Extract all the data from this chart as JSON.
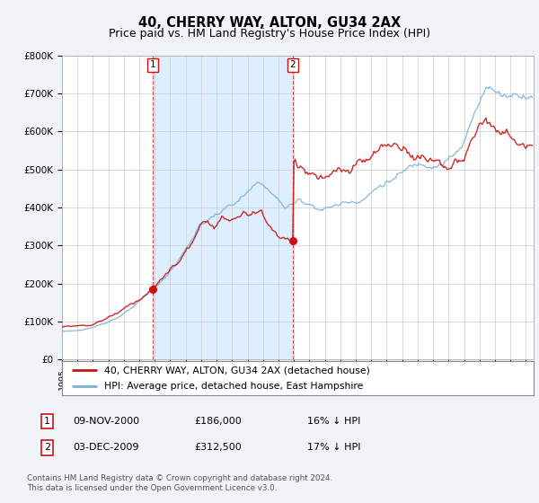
{
  "title": "40, CHERRY WAY, ALTON, GU34 2AX",
  "subtitle": "Price paid vs. HM Land Registry's House Price Index (HPI)",
  "ylim": [
    0,
    800000
  ],
  "yticks": [
    0,
    100000,
    200000,
    300000,
    400000,
    500000,
    600000,
    700000,
    800000
  ],
  "ytick_labels": [
    "£0",
    "£100K",
    "£200K",
    "£300K",
    "£400K",
    "£500K",
    "£600K",
    "£700K",
    "£800K"
  ],
  "price_paid_color": "#cc1111",
  "hpi_color": "#7ab0d4",
  "shade_color": "#ddeeff",
  "vline_color": "#dd3333",
  "background_color": "#f0f4f8",
  "plot_bg_color": "#ffffff",
  "sale1_x": 2000.875,
  "sale2_x": 2009.917,
  "sale1_price": 186000,
  "sale2_price": 312500,
  "legend_label1": "40, CHERRY WAY, ALTON, GU34 2AX (detached house)",
  "legend_label2": "HPI: Average price, detached house, East Hampshire",
  "table_row1": [
    "1",
    "09-NOV-2000",
    "£186,000",
    "16% ↓ HPI"
  ],
  "table_row2": [
    "2",
    "03-DEC-2009",
    "£312,500",
    "17% ↓ HPI"
  ],
  "footnote": "Contains HM Land Registry data © Crown copyright and database right 2024.\nThis data is licensed under the Open Government Licence v3.0.",
  "title_fontsize": 10.5,
  "subtitle_fontsize": 9,
  "tick_fontsize": 7.5,
  "xlim_start": 1995,
  "xlim_end": 2025.5
}
